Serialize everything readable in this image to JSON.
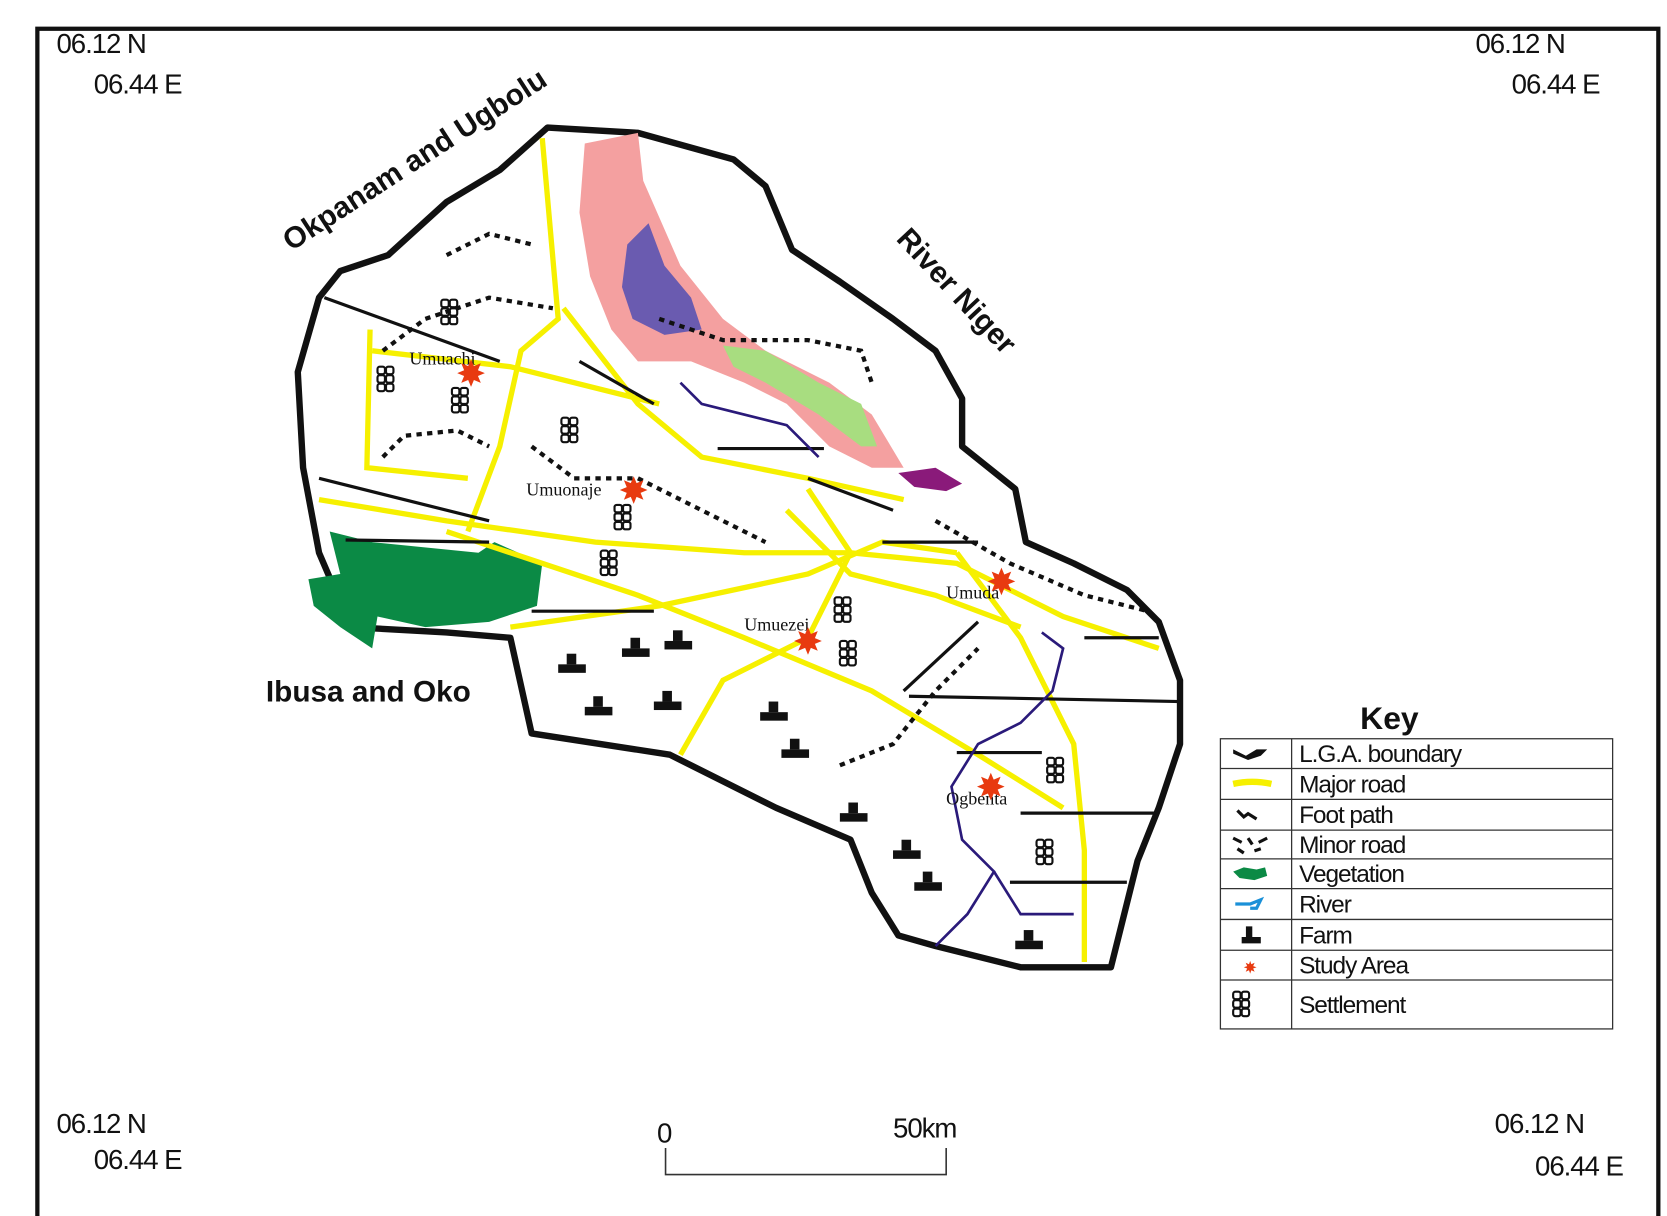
{
  "corners": [
    {
      "lat": "06.12 N",
      "lon": "06.44 E"
    },
    {
      "lat": "06.12 N",
      "lon": "06.44 E"
    },
    {
      "lat": "06.12 N",
      "lon": "06.44 E"
    },
    {
      "lat": "06.12 N",
      "lon": "06.44 E"
    }
  ],
  "regions": [
    "Okpanam and Ugbolu",
    "River Niger",
    "Ibusa and Oko"
  ],
  "places": [
    "Umuachi",
    "Umuonaje",
    "Umuezei",
    "Umuda",
    "Ogbenta"
  ],
  "key": {
    "title": "Key",
    "items": [
      "L.G.A. boundary",
      "Major road",
      "Foot path",
      "Minor road",
      "Vegetation",
      "River",
      "Farm",
      "Study Area",
      "Settlement"
    ]
  },
  "scale_bar": {
    "start": "0",
    "end": "50km"
  }
}
